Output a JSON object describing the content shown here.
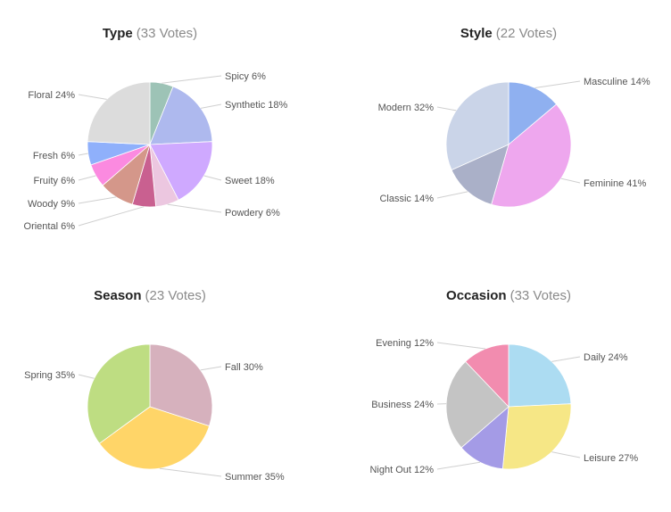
{
  "chart_data": [
    {
      "type": "pie",
      "title": "Type",
      "votes_label": "(33 Votes)",
      "series": [
        {
          "name": "Spicy",
          "label": "Spicy 6%",
          "value": 6,
          "color": "#9dc3b6"
        },
        {
          "name": "Synthetic",
          "label": "Synthetic 18%",
          "value": 18,
          "color": "#aeb9ee"
        },
        {
          "name": "Sweet",
          "label": "Sweet 18%",
          "value": 18,
          "color": "#cfa9ff"
        },
        {
          "name": "Powdery",
          "label": "Powdery 6%",
          "value": 6,
          "color": "#ecc7e0"
        },
        {
          "name": "Oriental",
          "label": "Oriental 6%",
          "value": 6,
          "color": "#c96090"
        },
        {
          "name": "Woody",
          "label": "Woody 9%",
          "value": 9,
          "color": "#d4978a"
        },
        {
          "name": "Fruity",
          "label": "Fruity 6%",
          "value": 6,
          "color": "#fb8ae0"
        },
        {
          "name": "Fresh",
          "label": "Fresh 6%",
          "value": 6,
          "color": "#8fb0fb"
        },
        {
          "name": "Floral",
          "label": "Floral 24%",
          "value": 24,
          "color": "#dcdcdc"
        }
      ]
    },
    {
      "type": "pie",
      "title": "Style",
      "votes_label": "(22 Votes)",
      "series": [
        {
          "name": "Masculine",
          "label": "Masculine 14%",
          "value": 14,
          "color": "#8fb0f0"
        },
        {
          "name": "Feminine",
          "label": "Feminine 41%",
          "value": 41,
          "color": "#eea7ee"
        },
        {
          "name": "Classic",
          "label": "Classic 14%",
          "value": 14,
          "color": "#aab0c8"
        },
        {
          "name": "Modern",
          "label": "Modern 32%",
          "value": 32,
          "color": "#cad4e8"
        }
      ]
    },
    {
      "type": "pie",
      "title": "Season",
      "votes_label": "(23 Votes)",
      "series": [
        {
          "name": "Fall",
          "label": "Fall 30%",
          "value": 30,
          "color": "#d6b1bd"
        },
        {
          "name": "Summer",
          "label": "Summer 35%",
          "value": 35,
          "color": "#ffd568"
        },
        {
          "name": "Spring",
          "label": "Spring 35%",
          "value": 35,
          "color": "#bedd82"
        }
      ]
    },
    {
      "type": "pie",
      "title": "Occasion",
      "votes_label": "(33 Votes)",
      "series": [
        {
          "name": "Daily",
          "label": "Daily 24%",
          "value": 24,
          "color": "#acdcf2"
        },
        {
          "name": "Leisure",
          "label": "Leisure 27%",
          "value": 27,
          "color": "#f6e786"
        },
        {
          "name": "Night Out",
          "label": "Night Out 12%",
          "value": 12,
          "color": "#a49be6"
        },
        {
          "name": "Business",
          "label": "Business 24%",
          "value": 24,
          "color": "#c4c4c4"
        },
        {
          "name": "Evening",
          "label": "Evening 12%",
          "value": 12,
          "color": "#f28caf"
        }
      ]
    }
  ]
}
